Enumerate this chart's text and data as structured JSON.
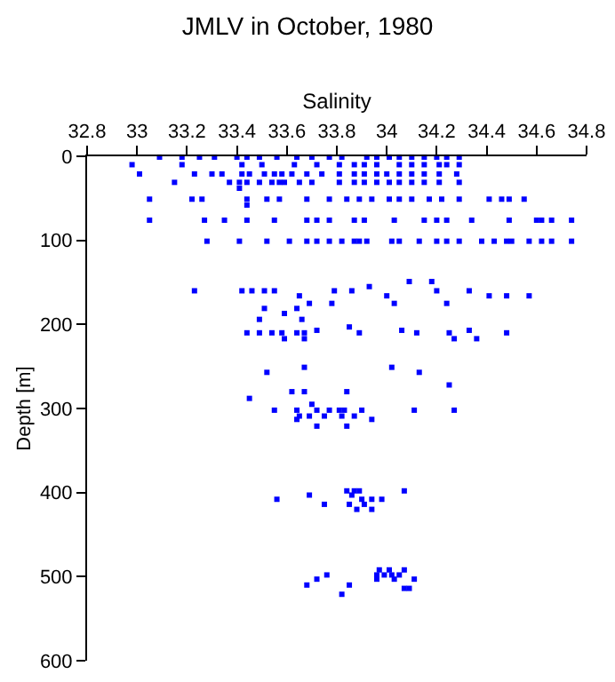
{
  "chart_data": {
    "type": "scatter",
    "title": "JMLV in October, 1980",
    "xlabel": "Salinity",
    "ylabel": "Depth [m]",
    "marker": "square",
    "grid": false,
    "xlim": [
      32.8,
      34.8
    ],
    "xticks": [
      {
        "value": 32.8,
        "label": "32.8"
      },
      {
        "value": 33,
        "label": "33"
      },
      {
        "value": 33.2,
        "label": "33.2"
      },
      {
        "value": 33.4,
        "label": "33.4"
      },
      {
        "value": 33.6,
        "label": "33.6"
      },
      {
        "value": 33.8,
        "label": "33.8"
      },
      {
        "value": 34,
        "label": "34"
      },
      {
        "value": 34.2,
        "label": "34.2"
      },
      {
        "value": 34.4,
        "label": "34.4"
      },
      {
        "value": 34.6,
        "label": "34.6"
      },
      {
        "value": 34.8,
        "label": "34.8"
      }
    ],
    "ylim": [
      600,
      0
    ],
    "yticks": [
      0,
      100,
      200,
      300,
      400,
      500,
      600
    ],
    "series": [
      {
        "color": "#0000ff",
        "x": [
          33.09,
          33.18,
          33.25,
          33.31,
          33.4,
          33.44,
          33.49,
          33.56,
          33.64,
          33.7,
          33.77,
          33.82,
          33.92,
          33.96,
          34.01,
          34.05,
          34.1,
          34.15,
          34.2,
          34.24,
          34.29,
          32.98,
          33.18,
          33.42,
          33.5,
          33.63,
          33.72,
          33.81,
          33.87,
          33.91,
          33.96,
          34.05,
          34.1,
          34.15,
          34.21,
          34.24,
          34.29,
          33.01,
          33.23,
          33.3,
          33.34,
          33.42,
          33.45,
          33.51,
          33.55,
          33.58,
          33.62,
          33.68,
          33.74,
          33.81,
          33.87,
          33.91,
          33.96,
          34.0,
          34.05,
          34.1,
          34.15,
          34.21,
          34.28,
          33.15,
          33.37,
          33.41,
          33.44,
          33.49,
          33.54,
          33.57,
          33.59,
          33.65,
          33.7,
          33.81,
          33.87,
          33.91,
          33.96,
          34.01,
          34.05,
          34.1,
          34.15,
          34.21,
          34.29,
          33.41,
          33.05,
          33.22,
          33.26,
          33.44,
          33.52,
          33.57,
          33.68,
          33.77,
          33.84,
          33.89,
          33.94,
          34.01,
          34.05,
          34.1,
          34.17,
          34.22,
          34.29,
          34.41,
          34.46,
          34.49,
          34.55,
          33.44,
          33.05,
          33.27,
          33.35,
          33.44,
          33.55,
          33.68,
          33.72,
          33.77,
          33.87,
          33.91,
          34.03,
          34.15,
          34.2,
          34.24,
          34.34,
          34.49,
          34.6,
          34.62,
          34.66,
          34.74,
          33.28,
          33.41,
          33.52,
          33.61,
          33.68,
          33.72,
          33.77,
          33.82,
          33.87,
          33.89,
          33.92,
          34.02,
          34.05,
          34.13,
          34.2,
          34.24,
          34.29,
          34.38,
          34.43,
          34.48,
          34.5,
          34.57,
          34.62,
          34.66,
          34.74,
          34.09,
          34.18,
          33.93,
          33.23,
          33.42,
          33.46,
          33.51,
          33.55,
          33.79,
          33.86,
          34.2,
          34.33,
          33.65,
          34.0,
          34.41,
          34.48,
          34.57,
          33.69,
          33.78,
          34.03,
          34.24,
          33.51,
          33.64,
          33.59,
          33.49,
          33.66,
          33.85,
          33.72,
          34.06,
          34.33,
          33.44,
          33.49,
          33.54,
          33.58,
          33.64,
          33.67,
          33.89,
          34.12,
          34.25,
          34.48,
          33.59,
          33.67,
          34.27,
          34.36,
          33.67,
          34.02,
          33.52,
          34.13,
          34.25,
          33.62,
          33.67,
          33.84,
          33.45,
          33.7,
          33.55,
          33.64,
          33.72,
          33.77,
          33.81,
          33.83,
          33.9,
          34.11,
          34.27,
          33.65,
          33.69,
          33.75,
          33.82,
          33.87,
          33.64,
          33.94,
          33.72,
          33.84,
          33.84,
          33.87,
          33.89,
          34.07,
          33.69,
          33.86,
          33.56,
          33.9,
          33.94,
          33.98,
          33.75,
          33.85,
          33.91,
          33.88,
          33.94,
          33.97,
          34.01,
          34.07,
          33.76,
          33.96,
          33.99,
          34.02,
          34.05,
          33.72,
          33.96,
          34.03,
          34.11,
          33.68,
          33.85,
          34.07,
          34.09,
          33.82
        ],
        "values": [
          1,
          1,
          1,
          1,
          1,
          1,
          1,
          1,
          1,
          1,
          1,
          1,
          1,
          1,
          1,
          1,
          1,
          1,
          1,
          1,
          1,
          10,
          10,
          10,
          10,
          10,
          10,
          10,
          10,
          10,
          10,
          10,
          10,
          10,
          10,
          10,
          10,
          21,
          21,
          21,
          21,
          21,
          21,
          21,
          21,
          21,
          21,
          21,
          21,
          21,
          21,
          21,
          21,
          21,
          21,
          21,
          21,
          21,
          21,
          31,
          31,
          31,
          31,
          31,
          31,
          31,
          31,
          31,
          31,
          31,
          31,
          31,
          31,
          31,
          31,
          31,
          31,
          31,
          31,
          38,
          51,
          51,
          51,
          51,
          51,
          51,
          51,
          51,
          51,
          51,
          51,
          51,
          51,
          51,
          51,
          51,
          51,
          51,
          51,
          51,
          51,
          58,
          76,
          76,
          76,
          76,
          76,
          76,
          76,
          76,
          76,
          76,
          76,
          76,
          76,
          76,
          76,
          76,
          76,
          76,
          76,
          76,
          101,
          101,
          101,
          101,
          101,
          101,
          101,
          101,
          101,
          101,
          101,
          101,
          101,
          101,
          101,
          101,
          101,
          101,
          101,
          101,
          101,
          101,
          101,
          101,
          101,
          149,
          149,
          155,
          160,
          160,
          160,
          160,
          160,
          160,
          160,
          160,
          160,
          166,
          166,
          166,
          166,
          166,
          175,
          175,
          175,
          175,
          181,
          181,
          187,
          194,
          194,
          203,
          207,
          207,
          207,
          210,
          210,
          210,
          210,
          210,
          210,
          210,
          210,
          210,
          210,
          217,
          217,
          217,
          217,
          251,
          251,
          257,
          257,
          272,
          280,
          280,
          280,
          288,
          295,
          302,
          302,
          302,
          302,
          302,
          302,
          302,
          302,
          302,
          309,
          309,
          309,
          309,
          309,
          313,
          313,
          321,
          321,
          398,
          398,
          398,
          398,
          403,
          403,
          408,
          408,
          408,
          408,
          414,
          414,
          414,
          420,
          420,
          492,
          492,
          492,
          498,
          498,
          498,
          498,
          498,
          503,
          503,
          503,
          503,
          510,
          510,
          514,
          514,
          521
        ]
      }
    ]
  }
}
